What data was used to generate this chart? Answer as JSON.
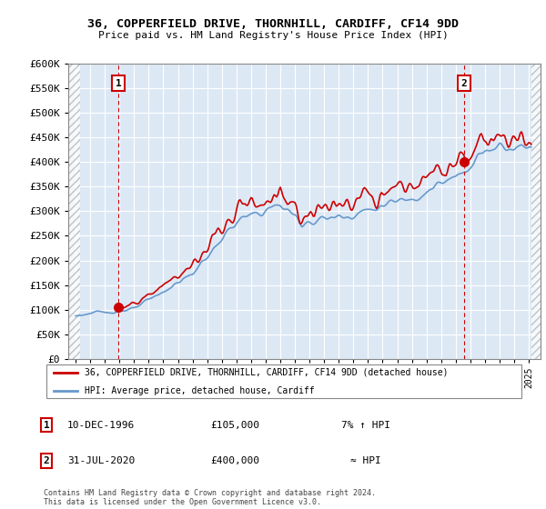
{
  "title": "36, COPPERFIELD DRIVE, THORNHILL, CARDIFF, CF14 9DD",
  "subtitle": "Price paid vs. HM Land Registry's House Price Index (HPI)",
  "purchase1_label": "10-DEC-1996",
  "purchase1_price": 105000,
  "purchase1_hpi": "7% ↑ HPI",
  "purchase2_label": "31-JUL-2020",
  "purchase2_price": 400000,
  "purchase2_hpi": "≈ HPI",
  "legend_property": "36, COPPERFIELD DRIVE, THORNHILL, CARDIFF, CF14 9DD (detached house)",
  "legend_hpi": "HPI: Average price, detached house, Cardiff",
  "footer": "Contains HM Land Registry data © Crown copyright and database right 2024.\nThis data is licensed under the Open Government Licence v3.0.",
  "ylim": [
    0,
    600000
  ],
  "yticks": [
    0,
    50000,
    100000,
    150000,
    200000,
    250000,
    300000,
    350000,
    400000,
    450000,
    500000,
    550000,
    600000
  ],
  "hpi_color": "#6699cc",
  "property_color": "#cc0000",
  "vline_color": "#cc0000",
  "marker_color": "#cc0000",
  "bg_color": "#dde8f5",
  "annotation_box_color": "#cc0000",
  "purchase1_year": 1996.917,
  "purchase2_year": 2020.583
}
